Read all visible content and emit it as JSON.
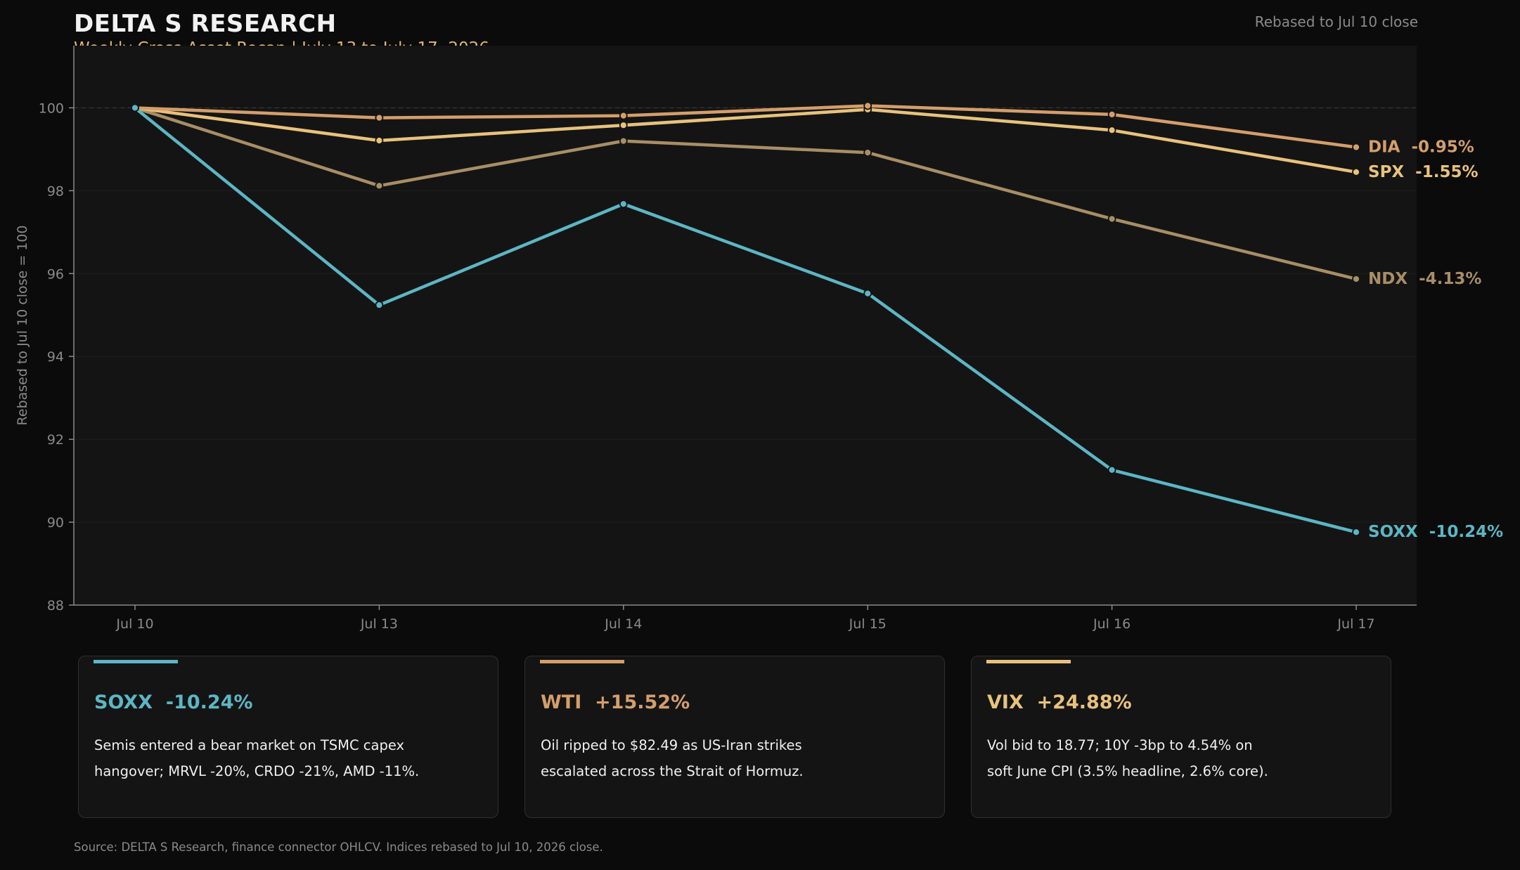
{
  "header": {
    "brand": "DELTA S RESEARCH",
    "subtitle": "Weekly Cross-Asset Recap  |  July 13 to July 17, 2026",
    "note": "Rebased to Jul 10 close"
  },
  "chart_data": {
    "type": "line",
    "title": "",
    "xlabel": "",
    "ylabel": "Rebased to Jul 10 close = 100",
    "categories": [
      "Jul 10",
      "Jul 13",
      "Jul 14",
      "Jul 15",
      "Jul 16",
      "Jul 17"
    ],
    "ylim": [
      88,
      101.5
    ],
    "yticks": [
      88,
      90,
      92,
      94,
      96,
      98,
      100
    ],
    "reference_line": 100,
    "grid": true,
    "series": [
      {
        "name": "NDX",
        "label": "-4.13%",
        "color": "#a88e66",
        "values": [
          100,
          98.12,
          99.2,
          98.92,
          97.32,
          95.87
        ]
      },
      {
        "name": "SPX",
        "label": "-1.55%",
        "color": "#e8c27c",
        "values": [
          100,
          99.21,
          99.58,
          99.96,
          99.46,
          98.45
        ]
      },
      {
        "name": "DIA",
        "label": "-0.95%",
        "color": "#d49e6b",
        "values": [
          100,
          99.76,
          99.81,
          100.05,
          99.84,
          99.05
        ]
      },
      {
        "name": "SOXX",
        "label": "-10.24%",
        "color": "#5cb6c4",
        "values": [
          100,
          95.24,
          97.68,
          95.52,
          91.26,
          89.76
        ]
      }
    ]
  },
  "cards": [
    {
      "title": "SOXX  -10.24%",
      "color": "#5cb6c4",
      "line1": "Semis entered a bear market on TSMC capex",
      "line2": "hangover; MRVL -20%, CRDO -21%, AMD -11%."
    },
    {
      "title": "WTI  +15.52%",
      "color": "#d49e6b",
      "line1": "Oil ripped to $82.49 as US-Iran strikes",
      "line2": "escalated across the Strait of Hormuz."
    },
    {
      "title": "VIX  +24.88%",
      "color": "#e8c27c",
      "line1": "Vol bid to 18.77; 10Y -3bp to 4.54% on",
      "line2": "soft June CPI (3.5% headline, 2.6% core)."
    }
  ],
  "footer": {
    "source": "Source: DELTA S Research, finance connector OHLCV.  Indices rebased to Jul 10, 2026 close."
  }
}
